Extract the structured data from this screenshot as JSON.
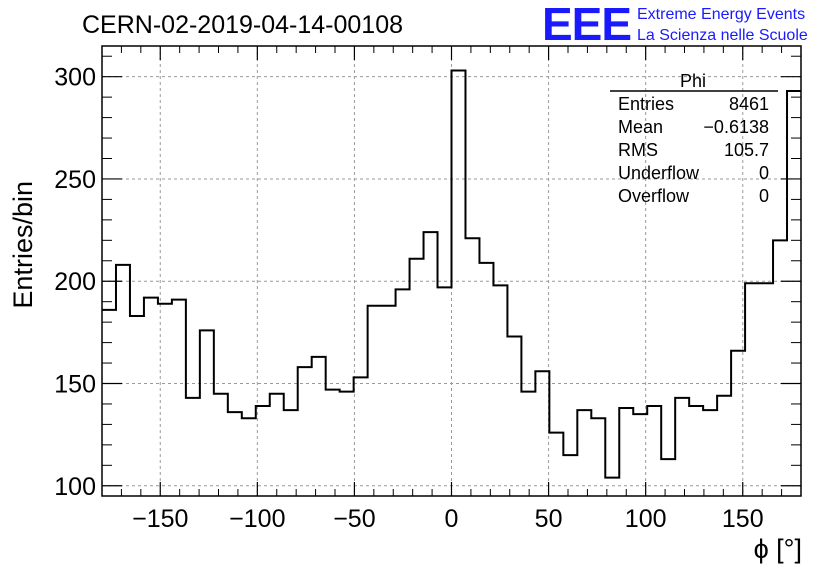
{
  "title": "CERN-02-2019-04-14-00108",
  "logo": {
    "text": "EEE",
    "line1": "Extreme Energy Events",
    "line2": "La Scienza nelle Scuole",
    "color": "#1a1aff"
  },
  "stats": {
    "name": "Phi",
    "rows": [
      {
        "label": "Entries",
        "value": "8461"
      },
      {
        "label": "Mean",
        "value": "−0.6138"
      },
      {
        "label": "RMS",
        "value": "105.7"
      },
      {
        "label": "Underflow",
        "value": "0"
      },
      {
        "label": "Overflow",
        "value": "0"
      }
    ]
  },
  "chart_data": {
    "type": "histogram",
    "title": "CERN-02-2019-04-14-00108",
    "xlabel": "ϕ [°]",
    "ylabel": "Entries/bin",
    "xlim": [
      -180,
      180
    ],
    "ylim": [
      95,
      315
    ],
    "grid": true,
    "bin_width": 7.2,
    "xticks": [
      -150,
      -100,
      -50,
      0,
      50,
      100,
      150
    ],
    "xtick_labels": [
      "−150",
      "−100",
      "−50",
      "0",
      "50",
      "100",
      "150"
    ],
    "yticks": [
      100,
      150,
      200,
      250,
      300
    ],
    "ytick_labels": [
      "100",
      "150",
      "200",
      "250",
      "300"
    ],
    "values": [
      186,
      208,
      183,
      192,
      189,
      191,
      143,
      176,
      145,
      136,
      133,
      139,
      145,
      137,
      158,
      163,
      147,
      146,
      153,
      188,
      188,
      196,
      211,
      224,
      197,
      303,
      221,
      209,
      198,
      173,
      146,
      156,
      126,
      115,
      137,
      133,
      104,
      138,
      135,
      139,
      113,
      143,
      139,
      137,
      144,
      166,
      199,
      199,
      220,
      293
    ]
  }
}
